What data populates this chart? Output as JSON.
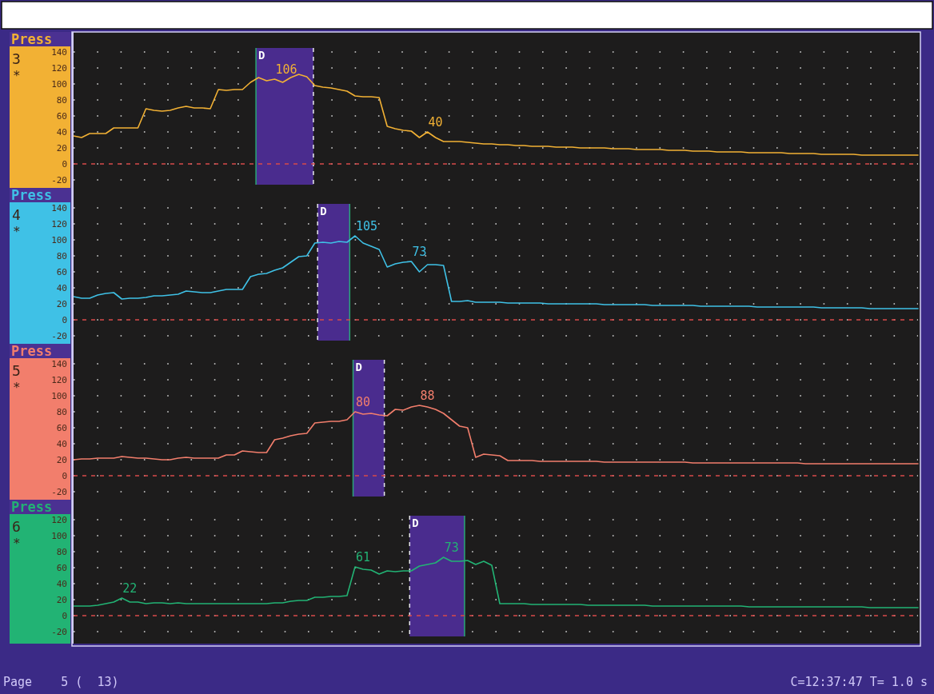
{
  "chart_data": [
    {
      "type": "line",
      "title": "Press",
      "ylabel": "3",
      "annotations": [
        "*",
        "D"
      ],
      "tick_labels": "y",
      "grid": "y",
      "ylim": [
        -30,
        165
      ],
      "yticks": [
        -20,
        0,
        20,
        40,
        60,
        80,
        100,
        120,
        140
      ],
      "categories": [
        null,
        null,
        null,
        null,
        null,
        null,
        null,
        null,
        null,
        null,
        null,
        null,
        null,
        null,
        null,
        null,
        null,
        null,
        null,
        null,
        null,
        null,
        null,
        null,
        null,
        null,
        null,
        null,
        null,
        null,
        null,
        null,
        null,
        null,
        null,
        null,
        null,
        null,
        null,
        null,
        null,
        null,
        null,
        null,
        null,
        null,
        null,
        null,
        null,
        null,
        null,
        null,
        null,
        null,
        null,
        null,
        null,
        null,
        null,
        null,
        null,
        null,
        null,
        null,
        null,
        null,
        null,
        null,
        null,
        null,
        null,
        null,
        null,
        null,
        null,
        null,
        null,
        null,
        null,
        null,
        null,
        null,
        null,
        null,
        null,
        null,
        null,
        null,
        null,
        null,
        null,
        null,
        null,
        null,
        null,
        null,
        null,
        null,
        null,
        null,
        null,
        null,
        null,
        null,
        null,
        null
      ],
      "ref_lines": [
        {
          "axis": "y",
          "value": 0,
          "color": "#d84a4a",
          "line_style": "dashed"
        }
      ],
      "series": [
        {
          "color": "#f2b134",
          "values": [
            35,
            33,
            38,
            38,
            38,
            45,
            45,
            45,
            45,
            69,
            67,
            66,
            67,
            70,
            72,
            70,
            70,
            69,
            93,
            92,
            93,
            93,
            102,
            108,
            104,
            106,
            102,
            108,
            112,
            109,
            98,
            96,
            95,
            93,
            91,
            85,
            84,
            84,
            83,
            47,
            44,
            42,
            41,
            33,
            40,
            33,
            28,
            28,
            28,
            27,
            26,
            25,
            25,
            24,
            24,
            23,
            23,
            22,
            22,
            22,
            21,
            21,
            21,
            20,
            20,
            20,
            20,
            19,
            19,
            19,
            18,
            18,
            18,
            18,
            17,
            17,
            17,
            16,
            16,
            16,
            15,
            15,
            15,
            15,
            14,
            14,
            14,
            14,
            14,
            13,
            13,
            13,
            13,
            12,
            12,
            12,
            12,
            12,
            11,
            11,
            11,
            11,
            11,
            11,
            11,
            11
          ],
          "value_labels": [
            null,
            null,
            null,
            null,
            null,
            null,
            null,
            null,
            null,
            null,
            null,
            null,
            null,
            null,
            null,
            null,
            null,
            null,
            null,
            null,
            null,
            null,
            null,
            null,
            null,
            "106",
            null,
            null,
            null,
            null,
            null,
            null,
            null,
            null,
            null,
            null,
            null,
            null,
            null,
            null,
            null,
            null,
            null,
            null,
            "40",
            null,
            null,
            null,
            null,
            null,
            null,
            null,
            null,
            null,
            null,
            null,
            null,
            null,
            null,
            null,
            null,
            null,
            null,
            null,
            null,
            null,
            null,
            null,
            null,
            null,
            null,
            null,
            null,
            null,
            null,
            null,
            null,
            null,
            null,
            null,
            null,
            null,
            null,
            null,
            null,
            null,
            null,
            null,
            null,
            null,
            null,
            null,
            null,
            null,
            null,
            null,
            null,
            null,
            null,
            null,
            null,
            null,
            null,
            null,
            null,
            null
          ]
        }
      ]
    },
    {
      "type": "line",
      "title": "Press",
      "ylabel": "4",
      "annotations": [
        "*",
        "D"
      ],
      "tick_labels": "y",
      "grid": "y",
      "ylim": [
        -30,
        165
      ],
      "yticks": [
        -20,
        0,
        20,
        40,
        60,
        80,
        100,
        120,
        140
      ],
      "categories": [
        null,
        null,
        null,
        null,
        null,
        null,
        null,
        null,
        null,
        null,
        null,
        null,
        null,
        null,
        null,
        null,
        null,
        null,
        null,
        null,
        null,
        null,
        null,
        null,
        null,
        null,
        null,
        null,
        null,
        null,
        null,
        null,
        null,
        null,
        null,
        null,
        null,
        null,
        null,
        null,
        null,
        null,
        null,
        null,
        null,
        null,
        null,
        null,
        null,
        null,
        null,
        null,
        null,
        null,
        null,
        null,
        null,
        null,
        null,
        null,
        null,
        null,
        null,
        null,
        null,
        null,
        null,
        null,
        null,
        null,
        null,
        null,
        null,
        null,
        null,
        null,
        null,
        null,
        null,
        null,
        null,
        null,
        null,
        null,
        null,
        null,
        null,
        null,
        null,
        null,
        null,
        null,
        null,
        null,
        null,
        null,
        null,
        null,
        null,
        null,
        null,
        null,
        null,
        null,
        null,
        null
      ],
      "ref_lines": [
        {
          "axis": "y",
          "value": 0,
          "color": "#d84a4a",
          "line_style": "dashed"
        }
      ],
      "series": [
        {
          "color": "#3fc1e6",
          "values": [
            29,
            27,
            27,
            31,
            33,
            34,
            26,
            27,
            27,
            28,
            30,
            30,
            31,
            32,
            36,
            35,
            34,
            34,
            36,
            38,
            38,
            38,
            54,
            57,
            58,
            62,
            65,
            72,
            79,
            80,
            96,
            97,
            96,
            98,
            97,
            105,
            96,
            92,
            88,
            66,
            70,
            72,
            73,
            60,
            69,
            69,
            68,
            23,
            23,
            24,
            22,
            22,
            22,
            22,
            21,
            21,
            21,
            21,
            21,
            20,
            20,
            20,
            20,
            20,
            20,
            20,
            19,
            19,
            19,
            19,
            19,
            19,
            18,
            18,
            18,
            18,
            18,
            18,
            17,
            17,
            17,
            17,
            17,
            17,
            17,
            16,
            16,
            16,
            16,
            16,
            16,
            16,
            16,
            15,
            15,
            15,
            15,
            15,
            15,
            14,
            14,
            14,
            14,
            14,
            14,
            14
          ],
          "value_labels": [
            null,
            null,
            null,
            null,
            null,
            null,
            null,
            null,
            null,
            null,
            null,
            null,
            null,
            null,
            null,
            null,
            null,
            null,
            null,
            null,
            null,
            null,
            null,
            null,
            null,
            null,
            null,
            null,
            null,
            null,
            null,
            null,
            null,
            null,
            null,
            "105",
            null,
            null,
            null,
            null,
            null,
            null,
            "73",
            null,
            null,
            null,
            null,
            null,
            null,
            null,
            null,
            null,
            null,
            null,
            null,
            null,
            null,
            null,
            null,
            null,
            null,
            null,
            null,
            null,
            null,
            null,
            null,
            null,
            null,
            null,
            null,
            null,
            null,
            null,
            null,
            null,
            null,
            null,
            null,
            null,
            null,
            null,
            null,
            null,
            null,
            null,
            null,
            null,
            null,
            null,
            null,
            null,
            null,
            null,
            null,
            null,
            null,
            null,
            null,
            null,
            null,
            null,
            null,
            null,
            null,
            null
          ]
        }
      ]
    },
    {
      "type": "line",
      "title": "Press",
      "ylabel": "5",
      "annotations": [
        "*",
        "D"
      ],
      "tick_labels": "y",
      "grid": "y",
      "ylim": [
        -30,
        165
      ],
      "yticks": [
        -20,
        0,
        20,
        40,
        60,
        80,
        100,
        120,
        140
      ],
      "categories": [
        null,
        null,
        null,
        null,
        null,
        null,
        null,
        null,
        null,
        null,
        null,
        null,
        null,
        null,
        null,
        null,
        null,
        null,
        null,
        null,
        null,
        null,
        null,
        null,
        null,
        null,
        null,
        null,
        null,
        null,
        null,
        null,
        null,
        null,
        null,
        null,
        null,
        null,
        null,
        null,
        null,
        null,
        null,
        null,
        null,
        null,
        null,
        null,
        null,
        null,
        null,
        null,
        null,
        null,
        null,
        null,
        null,
        null,
        null,
        null,
        null,
        null,
        null,
        null,
        null,
        null,
        null,
        null,
        null,
        null,
        null,
        null,
        null,
        null,
        null,
        null,
        null,
        null,
        null,
        null,
        null,
        null,
        null,
        null,
        null,
        null,
        null,
        null,
        null,
        null,
        null,
        null,
        null,
        null,
        null,
        null,
        null,
        null,
        null,
        null,
        null,
        null,
        null,
        null,
        null,
        null
      ],
      "ref_lines": [
        {
          "axis": "y",
          "value": 0,
          "color": "#d84a4a",
          "line_style": "dashed"
        }
      ],
      "series": [
        {
          "color": "#f27e6c",
          "values": [
            20,
            21,
            21,
            22,
            22,
            22,
            24,
            23,
            22,
            22,
            21,
            20,
            20,
            22,
            23,
            22,
            22,
            22,
            22,
            26,
            26,
            31,
            30,
            29,
            29,
            45,
            47,
            50,
            52,
            53,
            66,
            67,
            68,
            68,
            70,
            80,
            77,
            78,
            76,
            75,
            83,
            82,
            86,
            88,
            86,
            83,
            78,
            70,
            62,
            60,
            23,
            27,
            26,
            25,
            19,
            19,
            19,
            19,
            18,
            18,
            18,
            18,
            18,
            18,
            18,
            18,
            17,
            17,
            17,
            17,
            17,
            17,
            17,
            17,
            17,
            17,
            17,
            16,
            16,
            16,
            16,
            16,
            16,
            16,
            16,
            16,
            16,
            16,
            16,
            16,
            16,
            15,
            15,
            15,
            15,
            15,
            15,
            15,
            15,
            15,
            15,
            15,
            15,
            15,
            15,
            15
          ],
          "value_labels": [
            null,
            null,
            null,
            null,
            null,
            null,
            null,
            null,
            null,
            null,
            null,
            null,
            null,
            null,
            null,
            null,
            null,
            null,
            null,
            null,
            null,
            null,
            null,
            null,
            null,
            null,
            null,
            null,
            null,
            null,
            null,
            null,
            null,
            null,
            null,
            "80",
            null,
            null,
            null,
            null,
            null,
            null,
            null,
            "88",
            null,
            null,
            null,
            null,
            null,
            null,
            null,
            null,
            null,
            null,
            null,
            null,
            null,
            null,
            null,
            null,
            null,
            null,
            null,
            null,
            null,
            null,
            null,
            null,
            null,
            null,
            null,
            null,
            null,
            null,
            null,
            null,
            null,
            null,
            null,
            null,
            null,
            null,
            null,
            null,
            null,
            null,
            null,
            null,
            null,
            null,
            null,
            null,
            null,
            null,
            null,
            null,
            null,
            null,
            null,
            null,
            null,
            null,
            null,
            null,
            null,
            null
          ]
        }
      ]
    },
    {
      "type": "line",
      "title": "Press",
      "ylabel": "6",
      "annotations": [
        "*",
        "D",
        "Page    5 (  13)",
        "C=12:37:47 T= 1.0 s"
      ],
      "tick_labels": "y",
      "grid": "y",
      "ylim": [
        -35,
        145
      ],
      "yticks": [
        -20,
        0,
        20,
        40,
        60,
        80,
        100,
        120
      ],
      "categories": [
        null,
        null,
        null,
        null,
        null,
        null,
        null,
        null,
        null,
        null,
        null,
        null,
        null,
        null,
        null,
        null,
        null,
        null,
        null,
        null,
        null,
        null,
        null,
        null,
        null,
        null,
        null,
        null,
        null,
        null,
        null,
        null,
        null,
        null,
        null,
        null,
        null,
        null,
        null,
        null,
        null,
        null,
        null,
        null,
        null,
        null,
        null,
        null,
        null,
        null,
        null,
        null,
        null,
        null,
        null,
        null,
        null,
        null,
        null,
        null,
        null,
        null,
        null,
        null,
        null,
        null,
        null,
        null,
        null,
        null,
        null,
        null,
        null,
        null,
        null,
        null,
        null,
        null,
        null,
        null,
        null,
        null,
        null,
        null,
        null,
        null,
        null,
        null,
        null,
        null,
        null,
        null,
        null,
        null,
        null,
        null,
        null,
        null,
        null,
        null,
        null,
        null,
        null,
        null,
        null,
        null
      ],
      "ref_lines": [
        {
          "axis": "y",
          "value": 0,
          "color": "#d84a4a",
          "line_style": "dashed"
        }
      ],
      "series": [
        {
          "color": "#22b374",
          "values": [
            12,
            12,
            12,
            13,
            15,
            17,
            22,
            17,
            17,
            15,
            16,
            16,
            15,
            16,
            15,
            15,
            15,
            15,
            15,
            15,
            15,
            15,
            15,
            15,
            15,
            16,
            16,
            18,
            19,
            19,
            23,
            23,
            24,
            24,
            25,
            61,
            58,
            57,
            52,
            56,
            55,
            56,
            56,
            62,
            64,
            66,
            73,
            68,
            68,
            69,
            64,
            68,
            63,
            15,
            15,
            15,
            15,
            14,
            14,
            14,
            14,
            14,
            14,
            14,
            13,
            13,
            13,
            13,
            13,
            13,
            13,
            13,
            12,
            12,
            12,
            12,
            12,
            12,
            12,
            12,
            12,
            12,
            12,
            12,
            11,
            11,
            11,
            11,
            11,
            11,
            11,
            11,
            11,
            11,
            11,
            11,
            11,
            11,
            11,
            10,
            10,
            10,
            10,
            10,
            10,
            10
          ],
          "value_labels": [
            null,
            null,
            null,
            null,
            null,
            null,
            "22",
            null,
            null,
            null,
            null,
            null,
            null,
            null,
            null,
            null,
            null,
            null,
            null,
            null,
            null,
            null,
            null,
            null,
            null,
            null,
            null,
            null,
            null,
            null,
            null,
            null,
            null,
            null,
            null,
            "61",
            null,
            null,
            null,
            null,
            null,
            null,
            null,
            null,
            null,
            null,
            "73",
            null,
            null,
            null,
            null,
            null,
            null,
            null,
            null,
            null,
            null,
            null,
            null,
            null,
            null,
            null,
            null,
            null,
            null,
            null,
            null,
            null,
            null,
            null,
            null,
            null,
            null,
            null,
            null,
            null,
            null,
            null,
            null,
            null,
            null,
            null,
            null,
            null,
            null,
            null,
            null,
            null,
            null,
            null,
            null,
            null,
            null,
            null,
            null,
            null,
            null,
            null,
            null,
            null,
            null,
            null,
            null,
            null,
            null,
            null
          ]
        }
      ]
    }
  ]
}
